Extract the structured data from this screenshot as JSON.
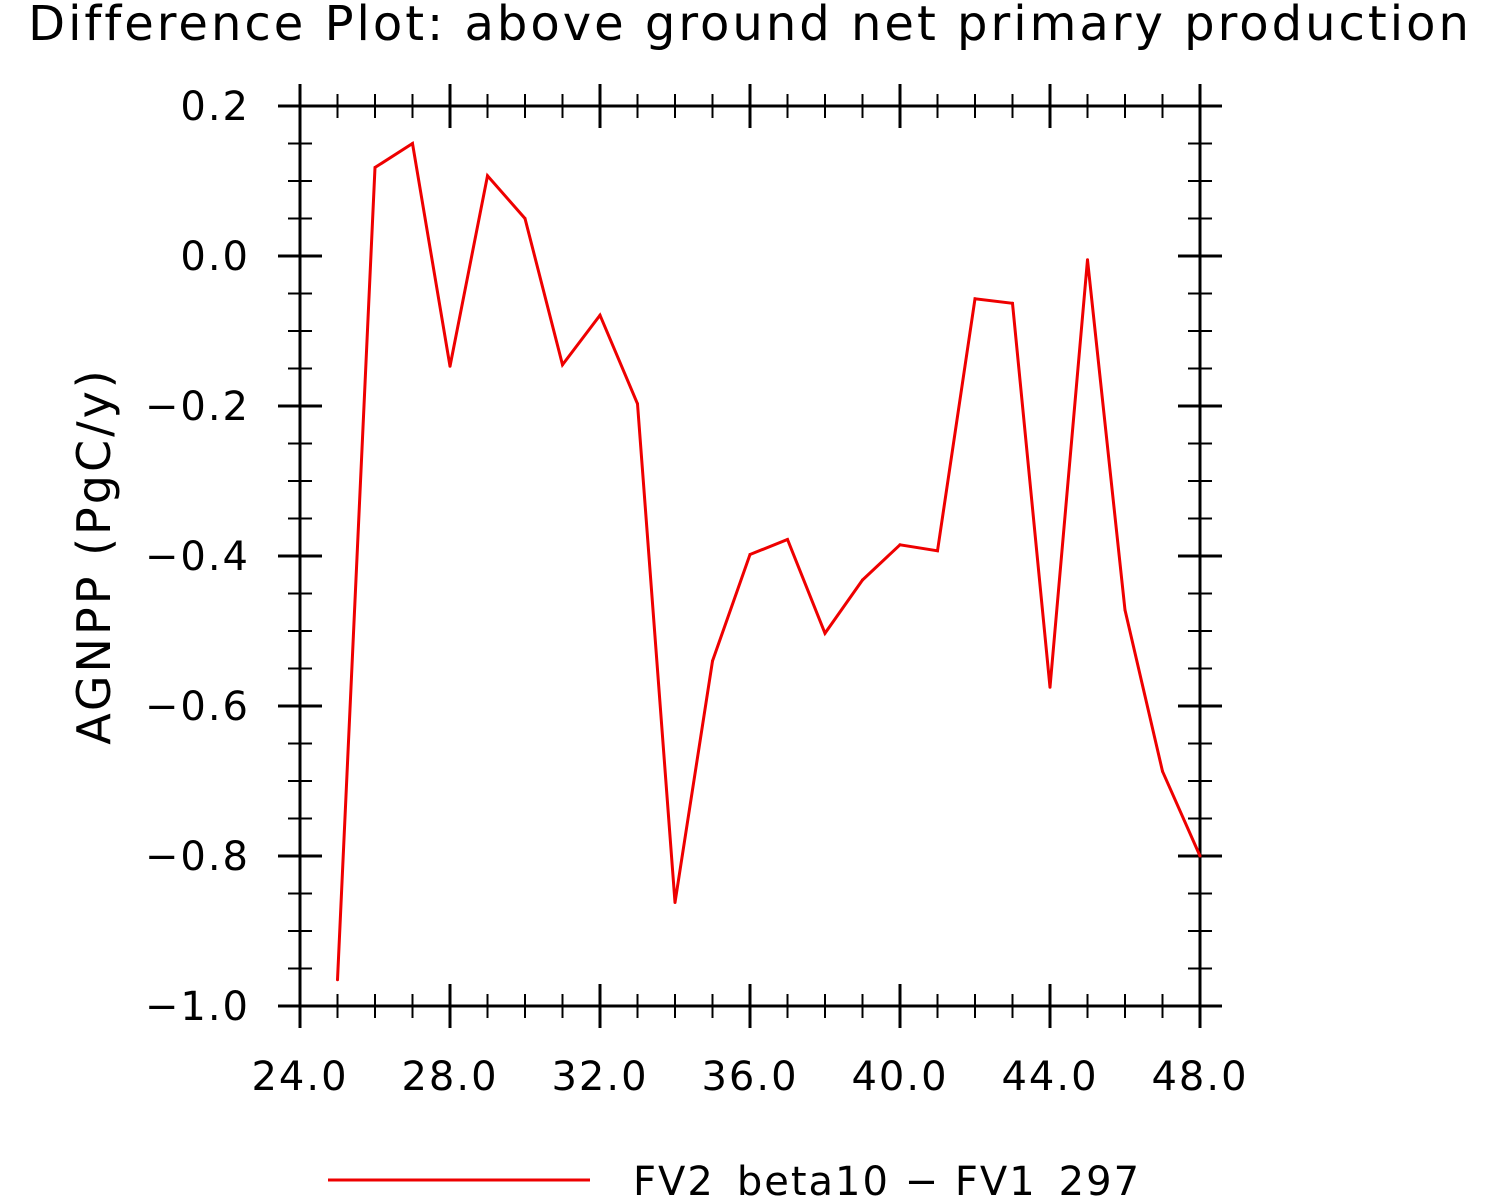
{
  "chart_data": {
    "type": "line",
    "title": "Difference Plot: above ground net primary production",
    "xlabel": "",
    "ylabel": "AGNPP   (PgC/y)",
    "xlim": [
      24,
      48
    ],
    "ylim": [
      -1.0,
      0.2
    ],
    "x_ticks": [
      24,
      28,
      32,
      36,
      40,
      44,
      48
    ],
    "x_tick_labels": [
      "24.0",
      "28.0",
      "32.0",
      "36.0",
      "40.0",
      "44.0",
      "48.0"
    ],
    "y_ticks": [
      0.2,
      0.0,
      -0.2,
      -0.4,
      -0.6,
      -0.8,
      -1.0
    ],
    "y_tick_labels": [
      "0.2",
      "0.0",
      "−0.2",
      "−0.4",
      "−0.6",
      "−0.8",
      "−1.0"
    ],
    "grid": false,
    "legend_position": "bottom-center",
    "series": [
      {
        "name": "FV2_beta10 − FV1_297",
        "color": "#ee0000",
        "x": [
          25,
          26,
          27,
          28,
          29,
          30,
          31,
          32,
          33,
          34,
          35,
          36,
          37,
          38,
          39,
          40,
          41,
          42,
          43,
          44,
          45,
          46,
          47,
          48
        ],
        "y": [
          -0.965,
          0.118,
          0.15,
          -0.147,
          0.107,
          0.05,
          -0.145,
          -0.079,
          -0.197,
          -0.862,
          -0.54,
          -0.398,
          -0.378,
          -0.503,
          -0.432,
          -0.385,
          -0.393,
          -0.057,
          -0.063,
          -0.575,
          -0.005,
          -0.472,
          -0.687,
          -0.8
        ]
      }
    ]
  }
}
